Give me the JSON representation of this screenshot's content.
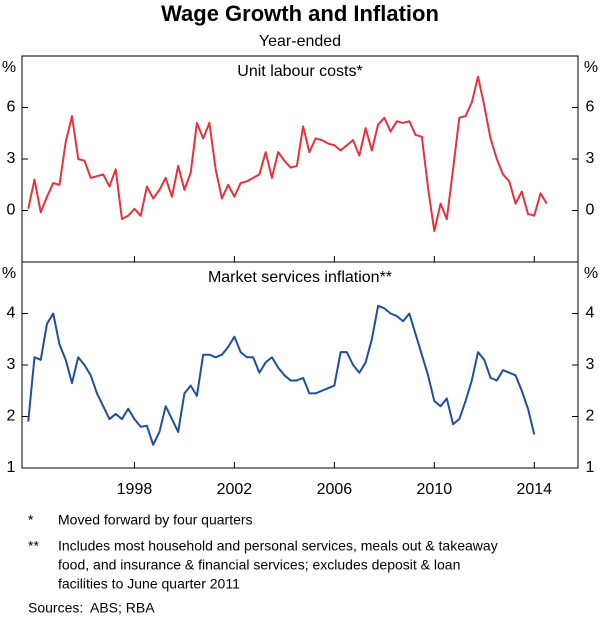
{
  "title": "Wage Growth and Inflation",
  "subtitle": "Year-ended",
  "notes": [
    {
      "marker": "*",
      "lines": [
        "Moved forward by four quarters"
      ]
    },
    {
      "marker": "**",
      "lines": [
        "Includes most household and personal services, meals out & takeaway",
        "food, and insurance & financial services; excludes deposit & loan",
        "facilities to June quarter 2011"
      ]
    }
  ],
  "sources_label": "Sources:",
  "sources": "ABS; RBA",
  "chart_data": [
    {
      "type": "line",
      "title": "Unit labour costs*",
      "y_label": "%",
      "xlim": [
        1993.5,
        2015.75
      ],
      "ylim": [
        -3,
        9
      ],
      "yticks": [
        0,
        3,
        6
      ],
      "grid": false,
      "x": [
        1993.75,
        1994,
        1994.25,
        1994.5,
        1994.75,
        1995,
        1995.25,
        1995.5,
        1995.75,
        1996,
        1996.25,
        1996.5,
        1996.75,
        1997,
        1997.25,
        1997.5,
        1997.75,
        1998,
        1998.25,
        1998.5,
        1998.75,
        1999,
        1999.25,
        1999.5,
        1999.75,
        2000,
        2000.25,
        2000.5,
        2000.75,
        2001,
        2001.25,
        2001.5,
        2001.75,
        2002,
        2002.25,
        2002.5,
        2002.75,
        2003,
        2003.25,
        2003.5,
        2003.75,
        2004,
        2004.25,
        2004.5,
        2004.75,
        2005,
        2005.25,
        2005.5,
        2005.75,
        2006,
        2006.25,
        2006.5,
        2006.75,
        2007,
        2007.25,
        2007.5,
        2007.75,
        2008,
        2008.25,
        2008.5,
        2008.75,
        2009,
        2009.25,
        2009.5,
        2009.75,
        2010,
        2010.25,
        2010.5,
        2010.75,
        2011,
        2011.25,
        2011.5,
        2011.75,
        2012,
        2012.25,
        2012.5,
        2012.75,
        2013,
        2013.25,
        2013.5,
        2013.75,
        2014,
        2014.25,
        2014.5
      ],
      "series": [
        {
          "name": "Unit labour costs",
          "color": "#e8313c",
          "values": [
            0.1,
            1.8,
            -0.1,
            0.8,
            1.6,
            1.5,
            4.0,
            5.5,
            3.0,
            2.9,
            1.9,
            2.0,
            2.1,
            1.4,
            2.4,
            -0.5,
            -0.3,
            0.1,
            -0.3,
            1.4,
            0.7,
            1.2,
            1.9,
            0.8,
            2.6,
            1.2,
            2.2,
            5.1,
            4.2,
            5.1,
            2.4,
            0.7,
            1.5,
            0.8,
            1.6,
            1.7,
            1.9,
            2.1,
            3.4,
            1.9,
            3.4,
            2.9,
            2.5,
            2.6,
            4.9,
            3.4,
            4.2,
            4.1,
            3.9,
            3.8,
            3.5,
            3.8,
            4.1,
            3.2,
            4.8,
            3.5,
            5.0,
            5.4,
            4.6,
            5.2,
            5.1,
            5.2,
            4.4,
            4.3,
            1.3,
            -1.2,
            0.4,
            -0.5,
            2.4,
            5.4,
            5.5,
            6.3,
            7.8,
            6.1,
            4.2,
            3.0,
            2.1,
            1.7,
            0.4,
            1.1,
            -0.2,
            -0.3,
            1.0,
            0.4
          ]
        }
      ]
    },
    {
      "type": "line",
      "title": "Market services inflation**",
      "y_label": "%",
      "xlim": [
        1993.5,
        2015.75
      ],
      "xticks": [
        1998,
        2002,
        2006,
        2010,
        2014
      ],
      "ylim": [
        1,
        5
      ],
      "yticks": [
        1,
        2,
        3,
        4
      ],
      "grid": false,
      "x": [
        1993.75,
        1994,
        1994.25,
        1994.5,
        1994.75,
        1995,
        1995.25,
        1995.5,
        1995.75,
        1996,
        1996.25,
        1996.5,
        1996.75,
        1997,
        1997.25,
        1997.5,
        1997.75,
        1998,
        1998.25,
        1998.5,
        1998.75,
        1999,
        1999.25,
        1999.5,
        1999.75,
        2000,
        2000.25,
        2000.5,
        2000.75,
        2001,
        2001.25,
        2001.5,
        2001.75,
        2002,
        2002.25,
        2002.5,
        2002.75,
        2003,
        2003.25,
        2003.5,
        2003.75,
        2004,
        2004.25,
        2004.5,
        2004.75,
        2005,
        2005.25,
        2005.5,
        2005.75,
        2006,
        2006.25,
        2006.5,
        2006.75,
        2007,
        2007.25,
        2007.5,
        2007.75,
        2008,
        2008.25,
        2008.5,
        2008.75,
        2009,
        2009.25,
        2009.5,
        2009.75,
        2010,
        2010.25,
        2010.5,
        2010.75,
        2011,
        2011.25,
        2011.5,
        2011.75,
        2012,
        2012.25,
        2012.5,
        2012.75,
        2013,
        2013.25,
        2013.5,
        2013.75,
        2014
      ],
      "series": [
        {
          "name": "Market services inflation",
          "color": "#1f4f9e",
          "values": [
            1.9,
            3.15,
            3.1,
            3.8,
            4.0,
            3.4,
            3.1,
            2.65,
            3.15,
            3.0,
            2.8,
            2.45,
            2.2,
            1.95,
            2.05,
            1.95,
            2.15,
            1.95,
            1.8,
            1.82,
            1.45,
            1.7,
            2.2,
            1.95,
            1.7,
            2.45,
            2.6,
            2.4,
            3.2,
            3.2,
            3.15,
            3.2,
            3.35,
            3.55,
            3.25,
            3.15,
            3.15,
            2.85,
            3.05,
            3.15,
            2.95,
            2.8,
            2.7,
            2.7,
            2.75,
            2.45,
            2.45,
            2.5,
            2.55,
            2.6,
            3.25,
            3.25,
            3.0,
            2.85,
            3.05,
            3.5,
            4.15,
            4.1,
            4.0,
            3.95,
            3.85,
            4.0,
            3.6,
            3.2,
            2.8,
            2.3,
            2.2,
            2.35,
            1.85,
            1.95,
            2.3,
            2.7,
            3.25,
            3.1,
            2.75,
            2.7,
            2.9,
            2.85,
            2.8,
            2.5,
            2.15,
            1.65
          ]
        }
      ]
    }
  ]
}
